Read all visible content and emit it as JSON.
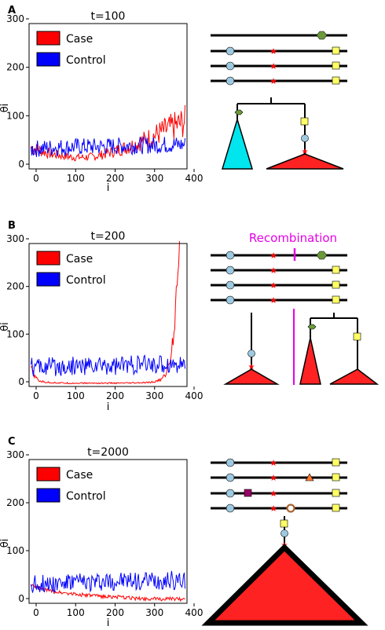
{
  "chart_data": [
    {
      "panel": "A",
      "type": "line",
      "title": "t=100",
      "xlabel": "i",
      "ylabel": "θ̂i",
      "xlim": [
        0,
        400
      ],
      "ylim": [
        0,
        300
      ],
      "xticks": [
        "0",
        "100",
        "200",
        "300",
        "400"
      ],
      "yticks": [
        "0",
        "100",
        "200",
        "300"
      ],
      "legend": "top-left",
      "series": [
        {
          "name": "Case",
          "color": "#ff0000",
          "x": [
            5,
            20,
            40,
            60,
            80,
            100,
            120,
            140,
            160,
            180,
            200,
            220,
            240,
            260,
            280,
            300,
            320,
            340,
            360,
            380,
            395
          ],
          "y": [
            45,
            40,
            35,
            30,
            28,
            25,
            24,
            24,
            25,
            28,
            33,
            38,
            43,
            48,
            55,
            62,
            70,
            78,
            85,
            92,
            98
          ]
        },
        {
          "name": "Control",
          "color": "#0000ff",
          "x": [
            5,
            20,
            40,
            60,
            80,
            100,
            120,
            140,
            160,
            180,
            200,
            220,
            240,
            260,
            280,
            300,
            320,
            340,
            360,
            380,
            395
          ],
          "y": [
            40,
            42,
            43,
            44,
            45,
            45,
            46,
            46,
            46,
            46,
            47,
            47,
            48,
            48,
            48,
            49,
            49,
            50,
            50,
            50,
            50
          ]
        }
      ]
    },
    {
      "panel": "B",
      "type": "line",
      "title": "t=200",
      "xlabel": "i",
      "ylabel": "θ̂i",
      "xlim": [
        0,
        400
      ],
      "ylim": [
        0,
        300
      ],
      "xticks": [
        "0",
        "100",
        "200",
        "300",
        "400"
      ],
      "yticks": [
        "0",
        "100",
        "200",
        "300"
      ],
      "legend": "top-left",
      "series": [
        {
          "name": "Case",
          "color": "#ff0000",
          "x": [
            5,
            15,
            25,
            40,
            60,
            100,
            150,
            200,
            250,
            300,
            320,
            335,
            345,
            355,
            362,
            368,
            373,
            378,
            382
          ],
          "y": [
            40,
            20,
            12,
            9,
            8,
            7,
            7,
            7,
            7,
            8,
            10,
            15,
            25,
            45,
            80,
            130,
            200,
            270,
            310
          ]
        },
        {
          "name": "Control",
          "color": "#0000ff",
          "x": [
            5,
            20,
            40,
            60,
            80,
            100,
            120,
            140,
            160,
            180,
            200,
            220,
            240,
            260,
            280,
            300,
            320,
            340,
            360,
            380,
            395
          ],
          "y": [
            40,
            40,
            41,
            41,
            42,
            42,
            43,
            43,
            43,
            44,
            44,
            44,
            45,
            45,
            45,
            46,
            46,
            46,
            47,
            47,
            47
          ]
        }
      ]
    },
    {
      "panel": "C",
      "type": "line",
      "title": "t=2000",
      "xlabel": "i",
      "ylabel": "θ̂i",
      "xlim": [
        0,
        400
      ],
      "ylim": [
        0,
        300
      ],
      "xticks": [
        "0",
        "100",
        "200",
        "300",
        "400"
      ],
      "yticks": [
        "0",
        "100",
        "200",
        "300"
      ],
      "legend": "top-left",
      "series": [
        {
          "name": "Case",
          "color": "#ff0000",
          "x": [
            5,
            20,
            40,
            60,
            80,
            100,
            120,
            140,
            160,
            180,
            200,
            220,
            240,
            260,
            280,
            300,
            320,
            340,
            360,
            380,
            395
          ],
          "y": [
            38,
            33,
            28,
            25,
            23,
            21,
            19,
            17,
            16,
            15,
            14,
            13,
            12,
            11,
            10,
            10,
            9,
            9,
            9,
            9,
            9
          ]
        },
        {
          "name": "Control",
          "color": "#0000ff",
          "x": [
            5,
            20,
            40,
            60,
            80,
            100,
            120,
            140,
            160,
            180,
            200,
            220,
            240,
            260,
            280,
            300,
            320,
            340,
            360,
            380,
            395
          ],
          "y": [
            40,
            40,
            41,
            41,
            42,
            42,
            43,
            43,
            44,
            44,
            45,
            45,
            46,
            46,
            47,
            47,
            47,
            48,
            48,
            48,
            48
          ]
        }
      ]
    }
  ],
  "diagrams": {
    "recombination_label": "Recombination"
  },
  "colors": {
    "case": "#ff0000",
    "control": "#0000ff",
    "tree_clade_cyan": "#00e5ee",
    "tree_clade_red": "#ff2222",
    "recombination": "#e600e6",
    "mutation_circle": "#9ecae1",
    "mutation_square": "#ffff66",
    "mutation_hexagon": "#6b9a3a",
    "mutation_star": "#ff0000"
  }
}
